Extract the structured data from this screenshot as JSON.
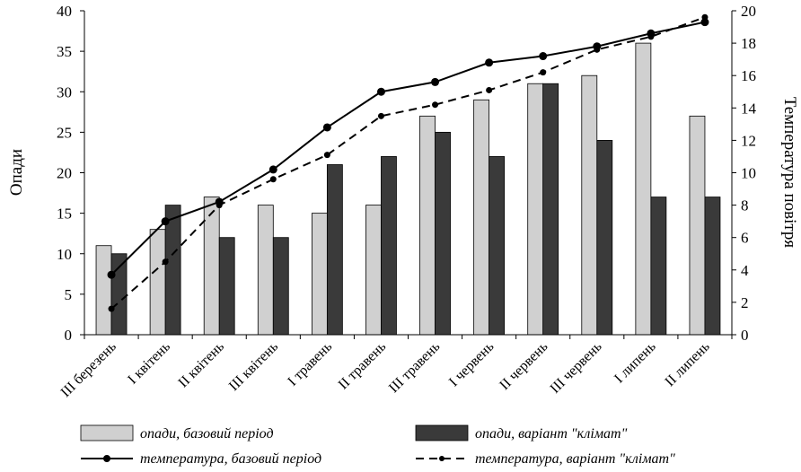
{
  "chart_data": {
    "type": "bar",
    "categories": [
      "III березень",
      "I квітень",
      "II квітень",
      "III квітень",
      "I травень",
      "II травень",
      "III травень",
      "I червень",
      "II червень",
      "III червень",
      "I липень",
      "II липень"
    ],
    "ylabel": "Опади",
    "y2label": "Температура повітря",
    "ylim": [
      0,
      40
    ],
    "y2lim": [
      0,
      20
    ],
    "yticks": [
      "0",
      "5",
      "10",
      "15",
      "20",
      "25",
      "30",
      "35",
      "40"
    ],
    "y2ticks": [
      "0",
      "2",
      "4",
      "6",
      "8",
      "10",
      "12",
      "14",
      "16",
      "18",
      "20"
    ],
    "grid": false,
    "legend_position": "bottom",
    "bar_series": [
      {
        "name": "опади, базовий період",
        "values": [
          11,
          13,
          17,
          16,
          15,
          16,
          27,
          29,
          31,
          32,
          36,
          27
        ],
        "color": "#d0d0d0"
      },
      {
        "name": "опади, варіант \"клімат\"",
        "values": [
          10,
          16,
          12,
          12,
          21,
          22,
          25,
          22,
          31,
          24,
          17,
          17
        ],
        "color": "#3a3a3a"
      }
    ],
    "line_series": [
      {
        "name": "температура, базовий період",
        "axis": "right",
        "style": "solid",
        "values": [
          3.7,
          7.0,
          8.2,
          10.2,
          12.8,
          15.0,
          15.6,
          16.8,
          17.2,
          17.8,
          18.6,
          19.3
        ]
      },
      {
        "name": "температура, варіант \"клімат\"",
        "axis": "right",
        "style": "dashed",
        "values": [
          1.6,
          4.5,
          8.0,
          9.6,
          11.1,
          13.5,
          14.2,
          15.1,
          16.2,
          17.6,
          18.4,
          19.6
        ]
      }
    ]
  }
}
